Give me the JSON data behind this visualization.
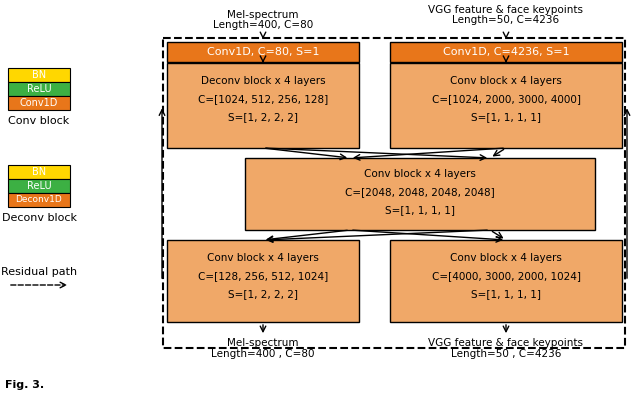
{
  "bg_color": "#ffffff",
  "orange_dark": "#E8761A",
  "orange_light": "#F0A868",
  "yellow": "#FFD700",
  "green": "#3CB043",
  "top_left_label1": "Mel-spectrum",
  "top_left_label2": "Length=400, C=80",
  "top_right_label1": "VGG feature & face keypoints",
  "top_right_label2": "Length=50, C=4236",
  "bot_left_label1": "Mel-spectrum",
  "bot_left_label2": "Length=400 , C=80",
  "bot_right_label1": "VGG feature & face keypoints",
  "bot_right_label2": "Length=50 , C=4236",
  "conv_top_left": "Conv1D, C=80, S=1",
  "conv_top_right": "Conv1D, C=4236, S=1",
  "block_tl_line1": "Deconv block x 4 layers",
  "block_tl_line2": "C=[1024, 512, 256, 128]",
  "block_tl_line3": "S=[1, 2, 2, 2]",
  "block_tr_line1": "Conv block x 4 layers",
  "block_tr_line2": "C=[1024, 2000, 3000, 4000]",
  "block_tr_line3": "S=[1, 1, 1, 1]",
  "block_mid_line1": "Conv block x 4 layers",
  "block_mid_line2": "C=[2048, 2048, 2048, 2048]",
  "block_mid_line3": "S=[1, 1, 1, 1]",
  "block_bl_line1": "Conv block x 4 layers",
  "block_bl_line2": "C=[128, 256, 512, 1024]",
  "block_bl_line3": "S=[1, 2, 2, 2]",
  "block_br_line1": "Conv block x 4 layers",
  "block_br_line2": "C=[4000, 3000, 2000, 1024]",
  "block_br_line3": "S=[1, 1, 1, 1]",
  "legend_conv_block": "Conv block",
  "legend_deconv_block": "Deconv block",
  "legend_residual": "Residual path",
  "fig_caption": "Fig. 3."
}
